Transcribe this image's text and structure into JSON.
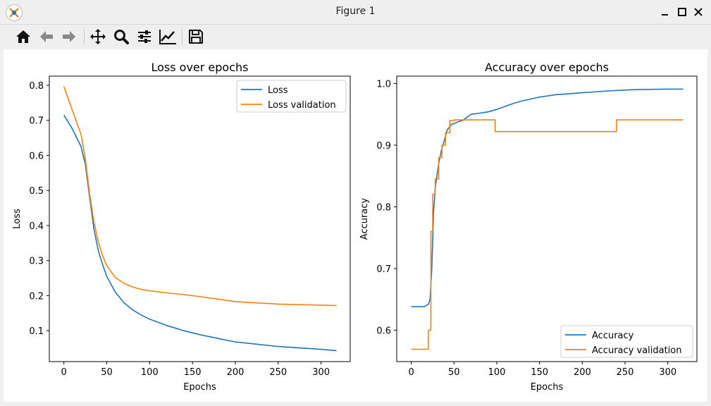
{
  "window": {
    "title": "Figure 1"
  },
  "toolbar": {
    "icons": [
      "home-icon",
      "back-arrow-icon",
      "forward-arrow-icon",
      "pan-move-icon",
      "zoom-magnifier-icon",
      "configure-subplots-icon",
      "edit-axis-icon",
      "save-floppy-icon"
    ]
  },
  "chart_data": [
    {
      "type": "line",
      "title": "Loss over epochs",
      "xlabel": "Epochs",
      "ylabel": "Loss",
      "xlim": [
        -17,
        334
      ],
      "ylim": [
        0.012,
        0.826
      ],
      "xticks": [
        0,
        50,
        100,
        150,
        200,
        250,
        300
      ],
      "yticks": [
        0.1,
        0.2,
        0.3,
        0.4,
        0.5,
        0.6,
        0.7,
        0.8
      ],
      "legend": "top-right",
      "series": [
        {
          "name": "Loss",
          "color": "#1f77b4",
          "x": [
            0,
            10,
            20,
            25,
            30,
            35,
            40,
            45,
            50,
            60,
            70,
            80,
            90,
            100,
            120,
            140,
            160,
            180,
            200,
            250,
            300,
            318
          ],
          "y": [
            0.715,
            0.675,
            0.625,
            0.575,
            0.48,
            0.39,
            0.33,
            0.29,
            0.255,
            0.21,
            0.18,
            0.16,
            0.145,
            0.133,
            0.115,
            0.1,
            0.088,
            0.078,
            0.068,
            0.055,
            0.047,
            0.043
          ]
        },
        {
          "name": "Loss validation",
          "color": "#ff7f0e",
          "x": [
            0,
            10,
            20,
            25,
            30,
            35,
            40,
            45,
            50,
            60,
            70,
            80,
            90,
            100,
            120,
            140,
            160,
            180,
            200,
            250,
            300,
            318
          ],
          "y": [
            0.796,
            0.728,
            0.66,
            0.59,
            0.49,
            0.41,
            0.355,
            0.315,
            0.285,
            0.252,
            0.235,
            0.225,
            0.218,
            0.214,
            0.208,
            0.203,
            0.197,
            0.19,
            0.183,
            0.176,
            0.173,
            0.172
          ]
        }
      ]
    },
    {
      "type": "line",
      "title": "Accuracy over epochs",
      "xlabel": "Epochs",
      "ylabel": "Accuracy",
      "xlim": [
        -17,
        334
      ],
      "ylim": [
        0.549,
        1.012
      ],
      "xticks": [
        0,
        50,
        100,
        150,
        200,
        250,
        300
      ],
      "yticks": [
        0.6,
        0.7,
        0.8,
        0.9,
        1.0
      ],
      "legend": "bottom-right",
      "series": [
        {
          "name": "Accuracy",
          "color": "#1f77b4",
          "x": [
            0,
            15,
            20,
            22,
            24,
            26,
            28,
            30,
            32,
            35,
            38,
            40,
            42,
            45,
            48,
            50,
            55,
            60,
            65,
            70,
            80,
            90,
            100,
            110,
            120,
            130,
            140,
            150,
            160,
            170,
            180,
            200,
            230,
            260,
            300,
            318
          ],
          "y": [
            0.638,
            0.638,
            0.642,
            0.65,
            0.7,
            0.79,
            0.83,
            0.85,
            0.87,
            0.89,
            0.905,
            0.915,
            0.925,
            0.93,
            0.935,
            0.935,
            0.938,
            0.94,
            0.945,
            0.95,
            0.952,
            0.954,
            0.958,
            0.963,
            0.968,
            0.972,
            0.975,
            0.978,
            0.98,
            0.982,
            0.983,
            0.985,
            0.988,
            0.99,
            0.991,
            0.991
          ]
        },
        {
          "name": "Accuracy validation",
          "color": "#ff7f0e",
          "x": [
            0,
            20,
            20,
            23,
            23,
            25,
            25,
            28,
            28,
            32,
            32,
            36,
            36,
            40,
            40,
            45,
            45,
            50,
            50,
            98,
            98,
            240,
            240,
            318
          ],
          "y": [
            0.569,
            0.569,
            0.6,
            0.6,
            0.76,
            0.76,
            0.82,
            0.82,
            0.845,
            0.845,
            0.88,
            0.88,
            0.9,
            0.9,
            0.92,
            0.92,
            0.94,
            0.94,
            0.941,
            0.941,
            0.922,
            0.922,
            0.941,
            0.941
          ]
        }
      ]
    }
  ]
}
